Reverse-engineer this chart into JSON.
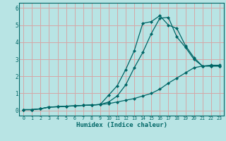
{
  "xlabel": "Humidex (Indice chaleur)",
  "ylabel": "",
  "background_color": "#b8e4e4",
  "grid_color": "#d4a8a8",
  "line_color": "#006666",
  "xlim": [
    -0.5,
    23.5
  ],
  "ylim": [
    -0.3,
    6.3
  ],
  "xticks": [
    0,
    1,
    2,
    3,
    4,
    5,
    6,
    7,
    8,
    9,
    10,
    11,
    12,
    13,
    14,
    15,
    16,
    17,
    18,
    19,
    20,
    21,
    22,
    23
  ],
  "yticks": [
    0,
    1,
    2,
    3,
    4,
    5,
    6
  ],
  "line1_x": [
    0,
    1,
    2,
    3,
    4,
    5,
    6,
    7,
    8,
    9,
    10,
    11,
    12,
    13,
    14,
    15,
    16,
    17,
    18,
    19,
    20,
    21,
    22,
    23
  ],
  "line1_y": [
    0.05,
    0.05,
    0.1,
    0.2,
    0.22,
    0.25,
    0.27,
    0.3,
    0.32,
    0.35,
    0.9,
    1.45,
    2.4,
    3.5,
    5.1,
    5.2,
    5.55,
    5.0,
    4.8,
    3.8,
    3.1,
    2.6,
    2.6,
    2.6
  ],
  "line2_x": [
    0,
    1,
    2,
    3,
    4,
    5,
    6,
    7,
    8,
    9,
    10,
    11,
    12,
    13,
    14,
    15,
    16,
    17,
    18,
    19,
    20,
    21,
    22,
    23
  ],
  "line2_y": [
    0.05,
    0.05,
    0.1,
    0.2,
    0.22,
    0.25,
    0.27,
    0.3,
    0.32,
    0.35,
    0.5,
    0.85,
    1.5,
    2.5,
    3.4,
    4.5,
    5.4,
    5.45,
    4.3,
    3.7,
    3.0,
    2.6,
    2.6,
    2.6
  ],
  "line3_x": [
    0,
    1,
    2,
    3,
    4,
    5,
    6,
    7,
    8,
    9,
    10,
    11,
    12,
    13,
    14,
    15,
    16,
    17,
    18,
    19,
    20,
    21,
    22,
    23
  ],
  "line3_y": [
    0.05,
    0.05,
    0.1,
    0.2,
    0.22,
    0.25,
    0.27,
    0.3,
    0.32,
    0.35,
    0.4,
    0.5,
    0.6,
    0.7,
    0.85,
    1.0,
    1.25,
    1.6,
    1.9,
    2.2,
    2.5,
    2.6,
    2.65,
    2.65
  ]
}
